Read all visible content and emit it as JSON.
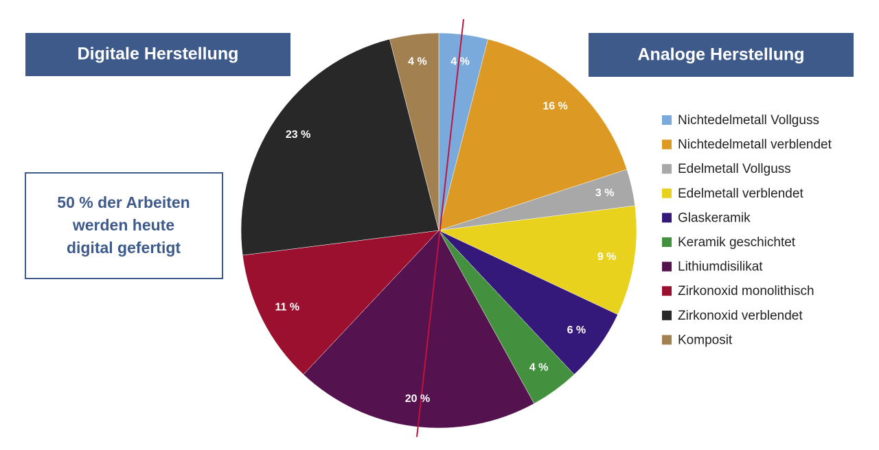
{
  "chart_data": {
    "type": "pie",
    "digital_label": "Digitale Herstellung",
    "analog_label": "Analoge Herstellung",
    "note": [
      "50 % der Arbeiten",
      "werden heute",
      "digital gefertigt"
    ],
    "categories": [
      "Nichtedelmetall Vollguss",
      "Nichtedelmetall verblendet",
      "Edelmetall Vollguss",
      "Edelmetall verblendet",
      "Glaskeramik",
      "Keramik geschichtet",
      "Lithiumdisilikat",
      "Zirkonoxid monolithisch",
      "Zirkonoxid verblendet",
      "Komposit"
    ],
    "values": [
      4,
      16,
      3,
      9,
      6,
      4,
      20,
      11,
      23,
      4
    ],
    "value_labels": [
      "4 %",
      "16 %",
      "3 %",
      "9 %",
      "6 %",
      "4 %",
      "20 %",
      "11 %",
      "23 %",
      "4 %"
    ],
    "colors": [
      "#7aaadc",
      "#dc9a24",
      "#a8a8a8",
      "#e8d21e",
      "#35197a",
      "#43913e",
      "#54124f",
      "#9b102e",
      "#282828",
      "#a2804f"
    ],
    "legend": "right"
  }
}
